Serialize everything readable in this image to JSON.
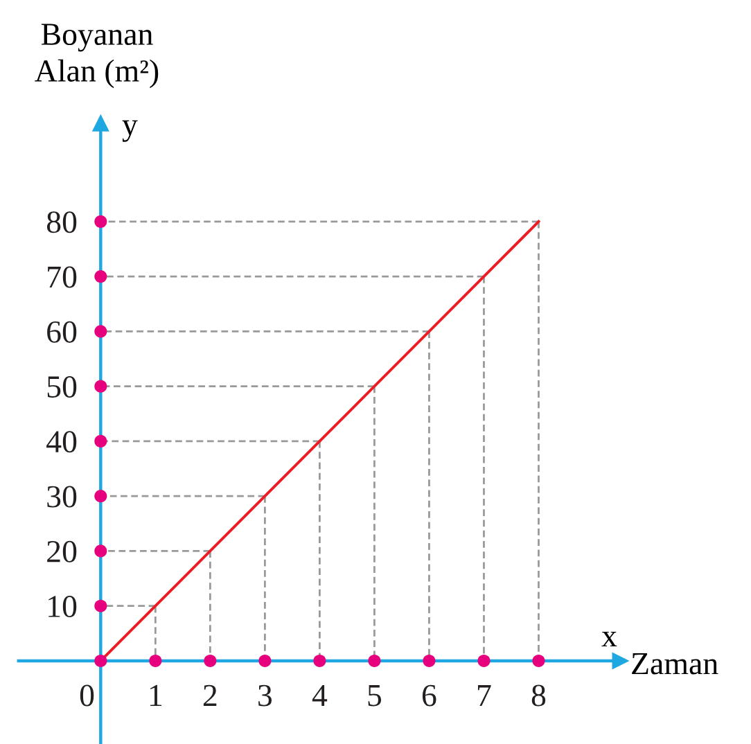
{
  "chart_data": {
    "type": "line",
    "xlabel": "Zaman",
    "ylabel": "Boyanan\nAlan (m²)",
    "annotations": [
      "y",
      "x"
    ],
    "x": [
      0,
      1,
      2,
      3,
      4,
      5,
      6,
      7,
      8
    ],
    "series": [
      {
        "color": "#ed1c24",
        "values": [
          0,
          10,
          20,
          30,
          40,
          50,
          60,
          70,
          80
        ]
      },
      {
        "x": [
          1,
          1
        ],
        "values": [
          10,
          0
        ],
        "color": "#999999",
        "line_style": "dashed"
      },
      {
        "x": [
          2,
          2
        ],
        "values": [
          20,
          0
        ],
        "color": "#999999",
        "line_style": "dashed"
      },
      {
        "x": [
          3,
          3
        ],
        "values": [
          30,
          0
        ],
        "color": "#999999",
        "line_style": "dashed"
      },
      {
        "x": [
          4,
          4
        ],
        "values": [
          40,
          0
        ],
        "color": "#999999",
        "line_style": "dashed"
      },
      {
        "x": [
          5,
          5
        ],
        "values": [
          50,
          0
        ],
        "color": "#999999",
        "line_style": "dashed"
      },
      {
        "x": [
          6,
          6
        ],
        "values": [
          60,
          0
        ],
        "color": "#999999",
        "line_style": "dashed"
      },
      {
        "x": [
          7,
          7
        ],
        "values": [
          70,
          0
        ],
        "color": "#999999",
        "line_style": "dashed"
      },
      {
        "x": [
          8,
          8
        ],
        "values": [
          80,
          0
        ],
        "color": "#999999",
        "line_style": "dashed"
      },
      {
        "x": [
          1,
          0
        ],
        "values": [
          10,
          10
        ],
        "color": "#999999",
        "line_style": "dashed"
      },
      {
        "x": [
          2,
          0
        ],
        "values": [
          20,
          20
        ],
        "color": "#999999",
        "line_style": "dashed"
      },
      {
        "x": [
          3,
          0
        ],
        "values": [
          30,
          30
        ],
        "color": "#999999",
        "line_style": "dashed"
      },
      {
        "x": [
          4,
          0
        ],
        "values": [
          40,
          40
        ],
        "color": "#999999",
        "line_style": "dashed"
      },
      {
        "x": [
          5,
          0
        ],
        "values": [
          50,
          50
        ],
        "color": "#999999",
        "line_style": "dashed"
      },
      {
        "x": [
          6,
          0
        ],
        "values": [
          60,
          60
        ],
        "color": "#999999",
        "line_style": "dashed"
      },
      {
        "x": [
          7,
          0
        ],
        "values": [
          70,
          70
        ],
        "color": "#999999",
        "line_style": "dashed"
      },
      {
        "x": [
          8,
          0
        ],
        "values": [
          80,
          80
        ],
        "color": "#999999",
        "line_style": "dashed"
      }
    ],
    "xlim": [
      -1.5,
      9.5
    ],
    "ylim": [
      -15,
      98
    ],
    "xticks": [
      0,
      1,
      2,
      3,
      4,
      5,
      6,
      7,
      8
    ],
    "yticks": [
      10,
      20,
      30,
      40,
      50,
      60,
      70,
      80
    ],
    "line_style": "solid"
  }
}
